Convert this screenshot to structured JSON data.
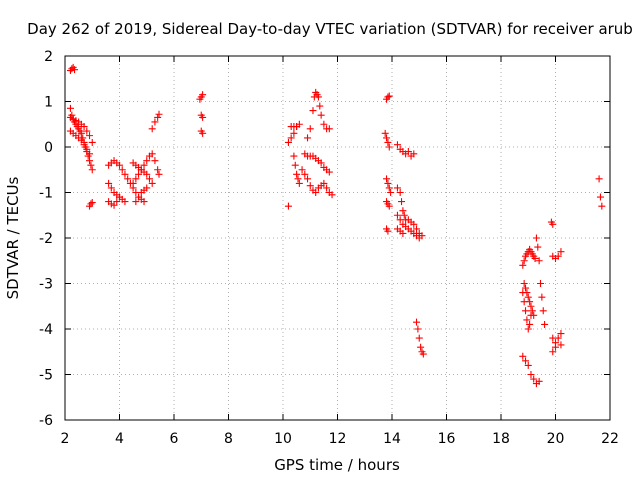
{
  "chart_data": {
    "type": "scatter",
    "title": "Day 262 of 2019, Sidereal Day-to-day VTEC variation (SDTVAR) for receiver arub",
    "xlabel": "GPS time / hours",
    "ylabel": "SDTVAR / TECUs",
    "xlim": [
      2,
      22
    ],
    "ylim": [
      -6,
      2
    ],
    "x_ticks": [
      2,
      4,
      6,
      8,
      10,
      12,
      14,
      16,
      18,
      20,
      22
    ],
    "y_ticks": [
      2,
      1,
      0,
      -1,
      -2,
      -3,
      -4,
      -5,
      -6
    ],
    "x_tick_labels": [
      "2",
      "4",
      "6",
      "8",
      "10",
      "12",
      "14",
      "16",
      "18",
      "20",
      "22"
    ],
    "y_tick_labels": [
      "2",
      "1",
      "0",
      "-1",
      "-2",
      "-3",
      "-4",
      "-5",
      "-6"
    ],
    "grid": true,
    "marker": "plus",
    "color": "#ff0000",
    "series": [
      {
        "values": [
          [
            2.2,
            1.68
          ],
          [
            2.25,
            1.72
          ],
          [
            2.3,
            1.75
          ],
          [
            2.35,
            1.7
          ],
          [
            2.2,
            0.85
          ],
          [
            2.25,
            0.7
          ],
          [
            2.3,
            0.6
          ],
          [
            2.35,
            0.55
          ],
          [
            2.4,
            0.5
          ],
          [
            2.45,
            0.45
          ],
          [
            2.5,
            0.4
          ],
          [
            2.55,
            0.35
          ],
          [
            2.6,
            0.3
          ],
          [
            2.65,
            0.2
          ],
          [
            2.7,
            0.1
          ],
          [
            2.75,
            0.0
          ],
          [
            2.8,
            -0.1
          ],
          [
            2.85,
            -0.2
          ],
          [
            2.9,
            -0.3
          ],
          [
            2.95,
            -0.4
          ],
          [
            3.0,
            -0.5
          ],
          [
            2.2,
            0.35
          ],
          [
            2.3,
            0.3
          ],
          [
            2.4,
            0.25
          ],
          [
            2.5,
            0.2
          ],
          [
            2.6,
            0.15
          ],
          [
            2.7,
            0.05
          ],
          [
            2.8,
            -0.05
          ],
          [
            2.9,
            -0.15
          ],
          [
            2.2,
            0.65
          ],
          [
            2.3,
            0.62
          ],
          [
            2.4,
            0.58
          ],
          [
            2.5,
            0.55
          ],
          [
            2.6,
            0.5
          ],
          [
            2.7,
            0.45
          ],
          [
            2.8,
            0.35
          ],
          [
            2.9,
            0.25
          ],
          [
            3.0,
            0.1
          ],
          [
            2.9,
            -1.3
          ],
          [
            2.95,
            -1.25
          ],
          [
            3.0,
            -1.22
          ],
          [
            3.6,
            -0.4
          ],
          [
            3.7,
            -0.35
          ],
          [
            3.8,
            -0.3
          ],
          [
            3.9,
            -0.35
          ],
          [
            4.0,
            -0.4
          ],
          [
            4.1,
            -0.5
          ],
          [
            4.2,
            -0.6
          ],
          [
            4.3,
            -0.7
          ],
          [
            4.4,
            -0.8
          ],
          [
            4.5,
            -0.9
          ],
          [
            4.6,
            -1.0
          ],
          [
            4.7,
            -1.1
          ],
          [
            4.8,
            -1.15
          ],
          [
            4.9,
            -1.2
          ],
          [
            3.6,
            -0.8
          ],
          [
            3.7,
            -0.9
          ],
          [
            3.8,
            -1.0
          ],
          [
            3.9,
            -1.05
          ],
          [
            4.0,
            -1.1
          ],
          [
            4.1,
            -1.15
          ],
          [
            4.2,
            -1.2
          ],
          [
            3.6,
            -1.2
          ],
          [
            3.7,
            -1.25
          ],
          [
            3.8,
            -1.28
          ],
          [
            3.9,
            -1.2
          ],
          [
            4.0,
            -1.1
          ],
          [
            4.5,
            -0.35
          ],
          [
            4.6,
            -0.4
          ],
          [
            4.7,
            -0.45
          ],
          [
            4.8,
            -0.5
          ],
          [
            4.9,
            -0.55
          ],
          [
            5.0,
            -0.6
          ],
          [
            5.1,
            -0.7
          ],
          [
            5.2,
            -0.8
          ],
          [
            4.5,
            -0.8
          ],
          [
            4.6,
            -0.7
          ],
          [
            4.7,
            -0.6
          ],
          [
            4.8,
            -0.5
          ],
          [
            4.9,
            -0.4
          ],
          [
            5.0,
            -0.3
          ],
          [
            5.1,
            -0.2
          ],
          [
            5.2,
            -0.15
          ],
          [
            4.6,
            -1.2
          ],
          [
            4.7,
            -1.1
          ],
          [
            4.8,
            -1.0
          ],
          [
            4.9,
            -0.95
          ],
          [
            5.0,
            -0.9
          ],
          [
            5.2,
            0.4
          ],
          [
            5.3,
            0.55
          ],
          [
            5.4,
            0.65
          ],
          [
            5.45,
            0.72
          ],
          [
            5.3,
            -0.3
          ],
          [
            5.4,
            -0.5
          ],
          [
            5.45,
            -0.6
          ],
          [
            6.95,
            1.05
          ],
          [
            7.0,
            1.1
          ],
          [
            7.05,
            1.15
          ],
          [
            7.0,
            0.7
          ],
          [
            7.05,
            0.65
          ],
          [
            7.0,
            0.35
          ],
          [
            7.05,
            0.3
          ],
          [
            10.2,
            -1.3
          ],
          [
            10.2,
            0.1
          ],
          [
            10.3,
            0.2
          ],
          [
            10.4,
            0.3
          ],
          [
            10.5,
            0.45
          ],
          [
            10.6,
            0.5
          ],
          [
            10.3,
            0.45
          ],
          [
            10.4,
            0.45
          ],
          [
            10.5,
            0.45
          ],
          [
            10.4,
            -0.2
          ],
          [
            10.45,
            -0.4
          ],
          [
            10.5,
            -0.6
          ],
          [
            10.55,
            -0.7
          ],
          [
            10.6,
            -0.8
          ],
          [
            10.7,
            -0.5
          ],
          [
            10.8,
            -0.6
          ],
          [
            10.9,
            -0.7
          ],
          [
            11.0,
            -0.85
          ],
          [
            11.1,
            -0.95
          ],
          [
            11.2,
            -1.0
          ],
          [
            11.3,
            -0.9
          ],
          [
            11.4,
            -0.85
          ],
          [
            11.5,
            -0.8
          ],
          [
            11.6,
            -0.9
          ],
          [
            11.7,
            -1.0
          ],
          [
            11.8,
            -1.05
          ],
          [
            10.8,
            -0.15
          ],
          [
            10.9,
            -0.2
          ],
          [
            11.0,
            -0.2
          ],
          [
            11.1,
            -0.2
          ],
          [
            11.2,
            -0.25
          ],
          [
            11.3,
            -0.3
          ],
          [
            11.4,
            -0.35
          ],
          [
            11.5,
            -0.45
          ],
          [
            11.6,
            -0.5
          ],
          [
            11.7,
            -0.55
          ],
          [
            10.9,
            0.2
          ],
          [
            11.0,
            0.4
          ],
          [
            11.1,
            0.8
          ],
          [
            11.15,
            1.1
          ],
          [
            11.2,
            1.2
          ],
          [
            11.25,
            1.15
          ],
          [
            11.3,
            1.1
          ],
          [
            11.35,
            0.9
          ],
          [
            11.4,
            0.7
          ],
          [
            11.5,
            0.5
          ],
          [
            11.6,
            0.4
          ],
          [
            11.7,
            0.4
          ],
          [
            13.8,
            1.05
          ],
          [
            13.85,
            1.1
          ],
          [
            13.9,
            1.12
          ],
          [
            13.75,
            0.3
          ],
          [
            13.8,
            0.2
          ],
          [
            13.85,
            0.1
          ],
          [
            13.9,
            0.0
          ],
          [
            13.8,
            -0.7
          ],
          [
            13.85,
            -0.8
          ],
          [
            13.9,
            -0.9
          ],
          [
            13.95,
            -1.0
          ],
          [
            13.8,
            -1.2
          ],
          [
            13.85,
            -1.25
          ],
          [
            13.9,
            -1.3
          ],
          [
            13.8,
            -1.8
          ],
          [
            13.85,
            -1.85
          ],
          [
            14.2,
            0.05
          ],
          [
            14.3,
            -0.05
          ],
          [
            14.4,
            -0.1
          ],
          [
            14.5,
            -0.15
          ],
          [
            14.6,
            -0.1
          ],
          [
            14.7,
            -0.2
          ],
          [
            14.8,
            -0.15
          ],
          [
            14.2,
            -0.9
          ],
          [
            14.3,
            -1.0
          ],
          [
            14.35,
            -1.2
          ],
          [
            14.4,
            -1.4
          ],
          [
            14.45,
            -1.5
          ],
          [
            14.5,
            -1.6
          ],
          [
            14.6,
            -1.6
          ],
          [
            14.7,
            -1.65
          ],
          [
            14.8,
            -1.7
          ],
          [
            14.9,
            -1.8
          ],
          [
            15.0,
            -1.9
          ],
          [
            15.1,
            -1.95
          ],
          [
            14.2,
            -1.5
          ],
          [
            14.3,
            -1.6
          ],
          [
            14.4,
            -1.7
          ],
          [
            14.5,
            -1.75
          ],
          [
            14.6,
            -1.8
          ],
          [
            14.7,
            -1.85
          ],
          [
            14.8,
            -1.9
          ],
          [
            14.9,
            -1.95
          ],
          [
            15.0,
            -2.0
          ],
          [
            14.2,
            -1.8
          ],
          [
            14.3,
            -1.85
          ],
          [
            14.4,
            -1.9
          ],
          [
            14.9,
            -3.85
          ],
          [
            14.95,
            -4.0
          ],
          [
            15.0,
            -4.2
          ],
          [
            15.05,
            -4.4
          ],
          [
            15.1,
            -4.5
          ],
          [
            15.15,
            -4.55
          ],
          [
            18.8,
            -4.6
          ],
          [
            18.9,
            -4.7
          ],
          [
            19.0,
            -4.8
          ],
          [
            19.1,
            -5.0
          ],
          [
            19.2,
            -5.1
          ],
          [
            19.3,
            -5.2
          ],
          [
            19.4,
            -5.15
          ],
          [
            18.8,
            -3.2
          ],
          [
            18.85,
            -3.4
          ],
          [
            18.9,
            -3.6
          ],
          [
            18.95,
            -3.8
          ],
          [
            19.0,
            -4.0
          ],
          [
            19.05,
            -3.9
          ],
          [
            19.1,
            -3.7
          ],
          [
            18.8,
            -2.6
          ],
          [
            18.85,
            -2.5
          ],
          [
            18.9,
            -2.4
          ],
          [
            18.95,
            -2.35
          ],
          [
            19.0,
            -2.3
          ],
          [
            19.05,
            -2.25
          ],
          [
            19.1,
            -2.3
          ],
          [
            19.15,
            -2.35
          ],
          [
            19.2,
            -2.4
          ],
          [
            19.25,
            -2.45
          ],
          [
            18.85,
            -3.0
          ],
          [
            18.9,
            -3.1
          ],
          [
            18.95,
            -3.2
          ],
          [
            19.0,
            -3.3
          ],
          [
            19.05,
            -3.4
          ],
          [
            19.1,
            -3.5
          ],
          [
            19.15,
            -3.6
          ],
          [
            19.2,
            -3.7
          ],
          [
            19.3,
            -2.0
          ],
          [
            19.35,
            -2.2
          ],
          [
            19.4,
            -2.5
          ],
          [
            19.45,
            -3.0
          ],
          [
            19.5,
            -3.3
          ],
          [
            19.55,
            -3.6
          ],
          [
            19.6,
            -3.9
          ],
          [
            19.85,
            -1.65
          ],
          [
            19.9,
            -1.7
          ],
          [
            19.9,
            -2.4
          ],
          [
            20.0,
            -2.45
          ],
          [
            20.1,
            -2.4
          ],
          [
            20.2,
            -2.3
          ],
          [
            19.9,
            -4.2
          ],
          [
            20.0,
            -4.3
          ],
          [
            20.1,
            -4.2
          ],
          [
            20.2,
            -4.1
          ],
          [
            19.9,
            -4.5
          ],
          [
            20.0,
            -4.4
          ],
          [
            20.2,
            -4.35
          ],
          [
            21.6,
            -0.7
          ],
          [
            21.65,
            -1.1
          ],
          [
            21.7,
            -1.3
          ]
        ]
      }
    ]
  }
}
